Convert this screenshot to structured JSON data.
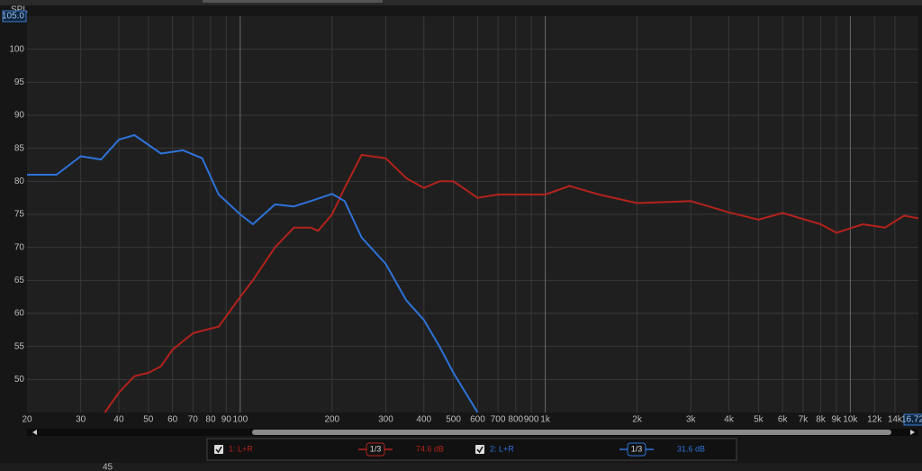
{
  "chart_data": {
    "type": "line",
    "y_label": "SPL",
    "xscale": "log",
    "grid": true,
    "xlim": [
      20,
      16720
    ],
    "ylim": [
      45,
      105
    ],
    "xticks": [
      20,
      30,
      40,
      50,
      60,
      70,
      80,
      90,
      100,
      200,
      300,
      400,
      500,
      600,
      700,
      800,
      900,
      {
        "value": 1000,
        "label": "1k"
      },
      {
        "value": 2000,
        "label": "2k"
      },
      {
        "value": 3000,
        "label": "3k"
      },
      {
        "value": 4000,
        "label": "4k"
      },
      {
        "value": 5000,
        "label": "5k"
      },
      {
        "value": 6000,
        "label": "6k"
      },
      {
        "value": 7000,
        "label": "7k"
      },
      {
        "value": 8000,
        "label": "8k"
      },
      {
        "value": 9000,
        "label": "9k"
      },
      {
        "value": 10000,
        "label": "10k"
      },
      {
        "value": 12000,
        "label": "12k"
      },
      {
        "value": 14000,
        "label": "14k"
      },
      {
        "value": 16720,
        "label": "16.72k"
      }
    ],
    "yticks": [
      50,
      55,
      60,
      65,
      70,
      75,
      80,
      85,
      90,
      95,
      100,
      {
        "value": 105,
        "label": "105.0"
      }
    ],
    "series": [
      {
        "name": "1: L+R",
        "color": "#b3221c",
        "x": [
          36,
          40,
          45,
          50,
          55,
          60,
          70,
          80,
          85,
          100,
          110,
          130,
          150,
          170,
          180,
          200,
          220,
          250,
          300,
          350,
          400,
          450,
          500,
          600,
          700,
          900,
          1000,
          1200,
          1500,
          2000,
          3000,
          4000,
          5000,
          6000,
          8000,
          9000,
          11000,
          13000,
          15000,
          16720
        ],
        "values": [
          45,
          48,
          50.5,
          51,
          52,
          54.5,
          57,
          57.7,
          58,
          62.5,
          65,
          70,
          73,
          73,
          72.5,
          75,
          79,
          84,
          83.5,
          80.5,
          79,
          80,
          80,
          77.5,
          78,
          78,
          78,
          79.3,
          78,
          76.7,
          77,
          75.3,
          74.2,
          75.2,
          73.5,
          72.2,
          73.5,
          73,
          74.8,
          74.4
        ]
      },
      {
        "name": "2: L+R",
        "color": "#2e72d8",
        "x": [
          20,
          25,
          30,
          35,
          40,
          45,
          55,
          65,
          75,
          85,
          100,
          110,
          130,
          150,
          170,
          200,
          220,
          250,
          300,
          350,
          400,
          450,
          500,
          600
        ],
        "values": [
          81,
          81,
          83.8,
          83.3,
          86.3,
          87,
          84.2,
          84.7,
          83.5,
          78,
          75,
          73.5,
          76.5,
          76.2,
          77,
          78.1,
          77,
          71.5,
          67.5,
          62,
          59,
          55,
          51,
          45
        ]
      }
    ],
    "legend_details": [
      {
        "smoothing": "1/3",
        "level": "74.6 dB"
      },
      {
        "smoothing": "1/3",
        "level": "31.6 dB"
      }
    ],
    "lower_panel_label": "45"
  }
}
